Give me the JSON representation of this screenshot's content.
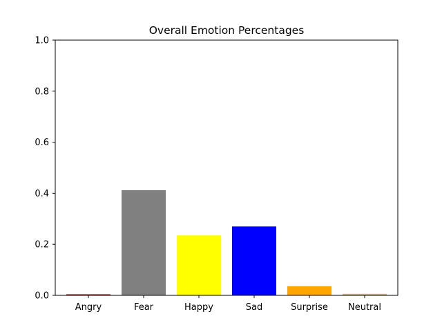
{
  "chart_data": {
    "type": "bar",
    "title": "Overall Emotion Percentages",
    "xlabel": "",
    "ylabel": "",
    "categories": [
      "Angry",
      "Fear",
      "Happy",
      "Sad",
      "Surprise",
      "Neutral"
    ],
    "values": [
      0.004,
      0.412,
      0.235,
      0.27,
      0.036,
      0.006
    ],
    "colors": [
      "#8b0000",
      "#808080",
      "#ffff00",
      "#0000ff",
      "#ffa500",
      "#d2b48c"
    ],
    "ylim": [
      0,
      1.0
    ],
    "yticks": [
      0.0,
      0.2,
      0.4,
      0.6,
      0.8,
      1.0
    ],
    "ytick_labels": [
      "0.0",
      "0.2",
      "0.4",
      "0.6",
      "0.8",
      "1.0"
    ],
    "grid": false,
    "legend": "none"
  }
}
